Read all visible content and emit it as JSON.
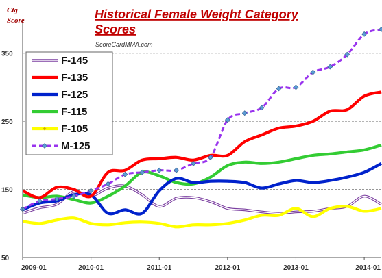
{
  "chart_data": {
    "type": "line",
    "title": "Historical Female Weight Category Scores",
    "title_lines": [
      "Historical Female Weight Category",
      "Scores"
    ],
    "source": "ScoreCardMMA.com",
    "ylabel_lines": [
      "Ctg",
      "Score"
    ],
    "xlabel": "",
    "ylim": [
      50,
      400
    ],
    "xlim": [
      "2009-01",
      "2014-04"
    ],
    "yticks": [
      50,
      150,
      250,
      350
    ],
    "xticks": [
      "2009-01",
      "2010-01",
      "2011-01",
      "2012-01",
      "2013-01",
      "2014-01"
    ],
    "grid": "horizontal dashed",
    "legend": "top-left",
    "background": "#ffffff",
    "x": [
      "2009-01",
      "2009-04",
      "2009-07",
      "2009-10",
      "2010-01",
      "2010-04",
      "2010-07",
      "2010-10",
      "2011-01",
      "2011-04",
      "2011-07",
      "2011-10",
      "2012-01",
      "2012-04",
      "2012-07",
      "2012-10",
      "2013-01",
      "2013-04",
      "2013-07",
      "2013-10",
      "2014-01",
      "2014-04"
    ],
    "series": [
      {
        "name": "F-145",
        "color": "#7b3fa0",
        "style": "double",
        "values": [
          115,
          123,
          128,
          147,
          140,
          152,
          155,
          142,
          125,
          137,
          138,
          132,
          122,
          120,
          117,
          115,
          117,
          118,
          122,
          125,
          140,
          128
        ]
      },
      {
        "name": "F-135",
        "color": "#ff0000",
        "style": "solid",
        "values": [
          148,
          138,
          153,
          150,
          140,
          175,
          178,
          193,
          195,
          197,
          193,
          200,
          200,
          220,
          230,
          240,
          243,
          250,
          265,
          267,
          287,
          293
        ]
      },
      {
        "name": "F-125",
        "color": "#0022cc",
        "style": "solid",
        "values": [
          120,
          130,
          133,
          142,
          142,
          115,
          120,
          115,
          148,
          166,
          160,
          162,
          162,
          160,
          152,
          158,
          163,
          160,
          163,
          168,
          175,
          188
        ]
      },
      {
        "name": "F-115",
        "color": "#33cc33",
        "style": "solid",
        "values": [
          142,
          138,
          140,
          135,
          130,
          140,
          155,
          175,
          170,
          160,
          158,
          168,
          185,
          190,
          188,
          190,
          195,
          200,
          202,
          205,
          208,
          215
        ]
      },
      {
        "name": "F-105",
        "color": "#ffff00",
        "style": "solid",
        "values": [
          103,
          100,
          105,
          108,
          100,
          98,
          101,
          102,
          100,
          95,
          98,
          98,
          100,
          105,
          112,
          112,
          122,
          110,
          122,
          125,
          118,
          122
        ]
      },
      {
        "name": "M-125",
        "color": "#9933ee",
        "style": "dashed",
        "marker": "diamond",
        "values": [
          121,
          133,
          136,
          140,
          148,
          158,
          172,
          175,
          178,
          178,
          188,
          197,
          252,
          262,
          270,
          298,
          300,
          322,
          330,
          348,
          378,
          385
        ]
      }
    ]
  }
}
